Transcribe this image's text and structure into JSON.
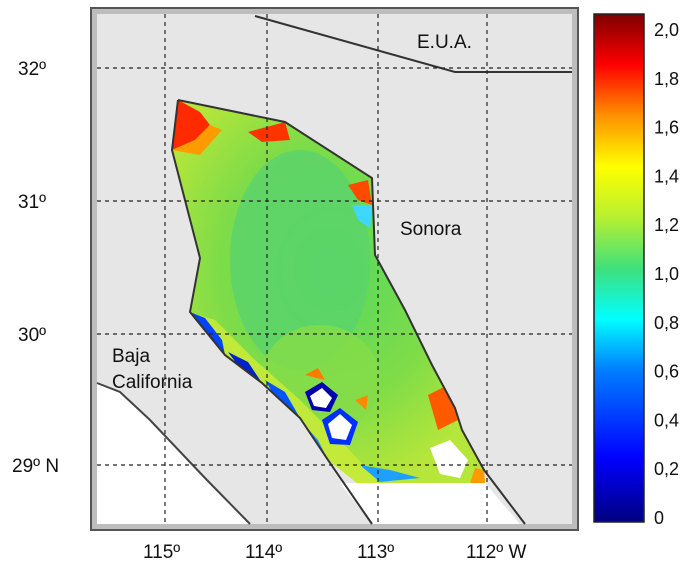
{
  "map": {
    "places": {
      "usa": "E.U.A.",
      "sonora": "Sonora",
      "baja_line1": "Baja",
      "baja_line2": "California"
    },
    "lat_ticks": [
      {
        "label": "32º"
      },
      {
        "label": "31º"
      },
      {
        "label": "30º"
      },
      {
        "label": "29º N"
      }
    ],
    "lon_ticks": [
      {
        "label": "115º"
      },
      {
        "label": "114º"
      },
      {
        "label": "113º"
      },
      {
        "label": "112º W"
      }
    ],
    "colors": {
      "land": "#e6e6e6",
      "sea_blank": "#ffffff",
      "field_main": "#8fdc3a",
      "coast": "#333333",
      "grid": "#222222"
    }
  },
  "colorbar": {
    "min": 0,
    "max": 2.0,
    "ticks": [
      "2,0",
      "1,8",
      "1,6",
      "1,4",
      "1,2",
      "1,0",
      "0,8",
      "0,6",
      "0,4",
      "0,2",
      "0"
    ],
    "colors": [
      "#00007f",
      "#0000ff",
      "#007fff",
      "#00ffff",
      "#7fff7f",
      "#ffff00",
      "#ff7f00",
      "#ff0000",
      "#7f0000"
    ]
  }
}
